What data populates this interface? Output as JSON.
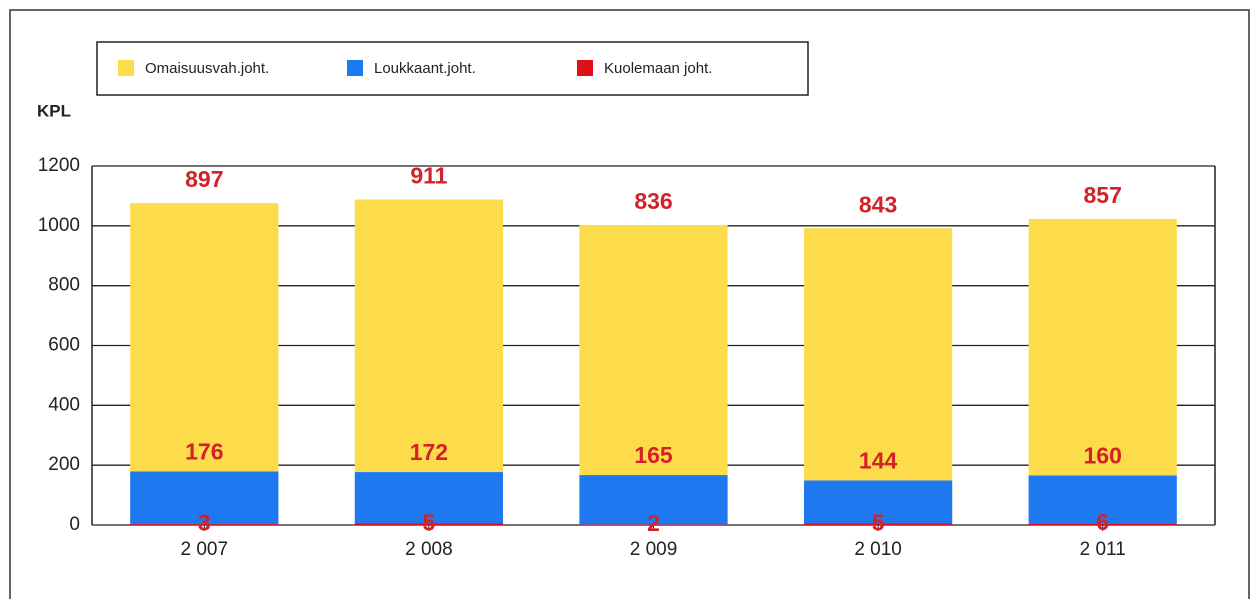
{
  "chart_data": {
    "type": "stacked_bar",
    "y_label": "KPL",
    "categories": [
      "2 007",
      "2 008",
      "2 009",
      "2 010",
      "2 011"
    ],
    "series": [
      {
        "name": "Omaisuusvah.joht.",
        "color": "#fcdc4a",
        "values": [
          897,
          911,
          836,
          843,
          857
        ]
      },
      {
        "name": "Loukkaant.joht.",
        "color": "#1e78f0",
        "values": [
          176,
          172,
          165,
          144,
          160
        ]
      },
      {
        "name": "Kuolemaan joht.",
        "color": "#e0101a",
        "values": [
          3,
          5,
          2,
          5,
          6
        ]
      }
    ],
    "ylim": [
      0,
      1200
    ],
    "yticks": [
      0,
      200,
      400,
      600,
      800,
      1000,
      1200
    ],
    "grid": true
  }
}
